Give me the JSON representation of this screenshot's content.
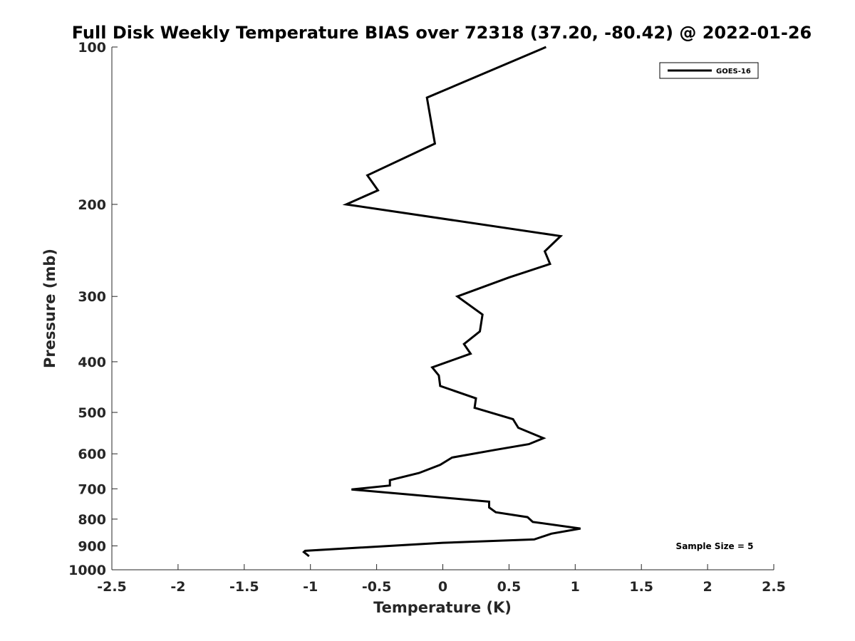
{
  "chart_data": {
    "type": "line",
    "title": "Full Disk Weekly Temperature BIAS over 72318 (37.20, -80.42) @ 2022-01-26",
    "xlabel": "Temperature (K)",
    "ylabel": "Pressure (mb)",
    "xlim": [
      -2.5,
      2.5
    ],
    "ylim": [
      1000,
      100
    ],
    "y_scale": "log",
    "x_ticks": [
      "-2.5",
      "-2",
      "-1.5",
      "-1",
      "-0.5",
      "0",
      "0.5",
      "1",
      "1.5",
      "2",
      "2.5"
    ],
    "y_ticks": [
      "100",
      "200",
      "300",
      "400",
      "500",
      "600",
      "700",
      "800",
      "900",
      "1000"
    ],
    "grid": false,
    "legend_position": "top-right",
    "annotation": "Sample Size = 5",
    "line_color": "#000000",
    "series": [
      {
        "name": "GOES-16",
        "points": [
          {
            "t": 0.78,
            "p": 100
          },
          {
            "t": -0.12,
            "p": 125
          },
          {
            "t": -0.06,
            "p": 153
          },
          {
            "t": -0.57,
            "p": 176
          },
          {
            "t": -0.49,
            "p": 188
          },
          {
            "t": -0.73,
            "p": 200
          },
          {
            "t": 0.89,
            "p": 230
          },
          {
            "t": 0.77,
            "p": 246
          },
          {
            "t": 0.81,
            "p": 260
          },
          {
            "t": 0.5,
            "p": 276
          },
          {
            "t": 0.11,
            "p": 300
          },
          {
            "t": 0.3,
            "p": 325
          },
          {
            "t": 0.28,
            "p": 350
          },
          {
            "t": 0.16,
            "p": 370
          },
          {
            "t": 0.21,
            "p": 386
          },
          {
            "t": -0.08,
            "p": 410
          },
          {
            "t": -0.03,
            "p": 425
          },
          {
            "t": -0.02,
            "p": 445
          },
          {
            "t": 0.25,
            "p": 470
          },
          {
            "t": 0.24,
            "p": 490
          },
          {
            "t": 0.53,
            "p": 515
          },
          {
            "t": 0.57,
            "p": 535
          },
          {
            "t": 0.76,
            "p": 560
          },
          {
            "t": 0.65,
            "p": 575
          },
          {
            "t": 0.39,
            "p": 590
          },
          {
            "t": 0.07,
            "p": 610
          },
          {
            "t": -0.02,
            "p": 630
          },
          {
            "t": -0.18,
            "p": 653
          },
          {
            "t": -0.4,
            "p": 674
          },
          {
            "t": -0.4,
            "p": 690
          },
          {
            "t": -0.69,
            "p": 702
          },
          {
            "t": -0.25,
            "p": 718
          },
          {
            "t": 0.35,
            "p": 741
          },
          {
            "t": 0.35,
            "p": 760
          },
          {
            "t": 0.4,
            "p": 776
          },
          {
            "t": 0.64,
            "p": 793
          },
          {
            "t": 0.68,
            "p": 810
          },
          {
            "t": 1.04,
            "p": 834
          },
          {
            "t": 0.82,
            "p": 853
          },
          {
            "t": 0.69,
            "p": 875
          },
          {
            "t": 0.0,
            "p": 888
          },
          {
            "t": -1.04,
            "p": 920
          },
          {
            "t": -1.05,
            "p": 925
          },
          {
            "t": -1.01,
            "p": 942
          }
        ]
      }
    ]
  }
}
